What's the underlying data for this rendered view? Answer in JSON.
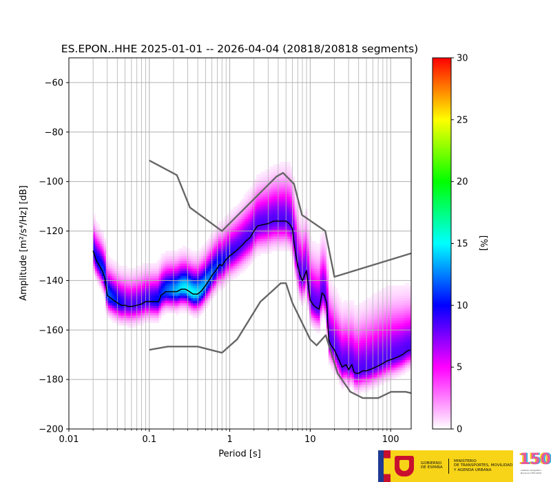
{
  "chart_data": {
    "type": "heatmap",
    "title": "ES.EPON..HHE   2025-01-01 -- 2026-04-04  (20818/20818 segments)",
    "xlabel": "Period [s]",
    "ylabel": "Amplitude [m²/s⁴/Hz] [dB]",
    "x_scale": "log",
    "xlim": [
      0.01,
      180
    ],
    "ylim": [
      -200,
      -50
    ],
    "x_ticks": [
      0.01,
      0.1,
      1,
      10,
      100
    ],
    "x_tick_labels": [
      "0.01",
      "0.1",
      "1",
      "10",
      "100"
    ],
    "y_ticks": [
      -200,
      -180,
      -160,
      -140,
      -120,
      -100,
      -80,
      -60
    ],
    "y_tick_labels": [
      "−200",
      "−180",
      "−160",
      "−140",
      "−120",
      "−100",
      "−80",
      "−60"
    ],
    "grid": true,
    "colorbar": {
      "label": "[%]",
      "range": [
        0,
        30
      ],
      "ticks": [
        0,
        5,
        10,
        15,
        20,
        25,
        30
      ],
      "tick_labels": [
        "0",
        "5",
        "10",
        "15",
        "20",
        "25",
        "30"
      ],
      "colormap": [
        "#ffffff",
        "#ff00ff",
        "#0000ff",
        "#00ffff",
        "#00ff00",
        "#ffff00",
        "#ff0000"
      ]
    },
    "series": [
      {
        "role": "mode",
        "color": "#000000",
        "x": [
          0.02,
          0.022,
          0.024,
          0.026,
          0.028,
          0.03,
          0.033,
          0.036,
          0.04,
          0.045,
          0.05,
          0.055,
          0.06,
          0.07,
          0.08,
          0.09,
          0.1,
          0.11,
          0.12,
          0.13,
          0.14,
          0.16,
          0.18,
          0.2,
          0.22,
          0.25,
          0.28,
          0.3,
          0.35,
          0.4,
          0.45,
          0.5,
          0.55,
          0.6,
          0.65,
          0.7,
          0.75,
          0.8,
          0.9,
          1.0,
          1.1,
          1.2,
          1.4,
          1.6,
          1.8,
          2.0,
          2.2,
          2.5,
          3.0,
          3.5,
          4.0,
          4.5,
          5.0,
          5.5,
          6.0,
          6.5,
          7.0,
          7.5,
          8.0,
          8.5,
          9.0,
          10.0,
          11.0,
          12.0,
          13.0,
          14.0,
          15.0,
          16.0,
          17.0,
          18.0,
          19.0,
          20.0,
          22.0,
          25.0,
          28.0,
          30.0,
          33.0,
          35.0,
          37.0,
          40.0,
          45.0,
          50.0,
          55.0,
          60.0,
          70.0,
          80.0,
          90.0,
          100.0,
          110.0,
          120.0,
          140.0,
          160.0,
          175.0
        ],
        "y": [
          -128,
          -132,
          -134,
          -136,
          -139,
          -146,
          -147,
          -148,
          -149,
          -150,
          -150,
          -150.5,
          -150.5,
          -150,
          -149.5,
          -148.5,
          -148.5,
          -148.5,
          -148.5,
          -148.5,
          -146,
          -144.5,
          -144.5,
          -144.5,
          -144.5,
          -143.5,
          -143.5,
          -144,
          -145.5,
          -145.5,
          -144,
          -142,
          -140,
          -138,
          -136.5,
          -135,
          -133.5,
          -134,
          -131.5,
          -130,
          -129,
          -128,
          -126,
          -124,
          -122.5,
          -120,
          -118,
          -117.5,
          -117,
          -116,
          -116,
          -116,
          -116,
          -117,
          -119,
          -128,
          -134,
          -138,
          -140,
          -138,
          -136,
          -148,
          -150,
          -151,
          -151.5,
          -145,
          -146,
          -149,
          -164,
          -166,
          -167,
          -168,
          -171,
          -175,
          -174,
          -176,
          -174,
          -177,
          -177.5,
          -177.5,
          -176.5,
          -176.5,
          -176,
          -175.5,
          -174.5,
          -173.5,
          -172.5,
          -172,
          -171.5,
          -171,
          -170,
          -168.5,
          -168
        ]
      },
      {
        "role": "high-noise-model",
        "color": "#666666",
        "x": [
          0.1,
          0.22,
          0.32,
          0.8,
          3.8,
          4.6,
          6.3,
          7.9,
          15.4,
          20.0,
          180.0
        ],
        "y": [
          -91.5,
          -97.4,
          -110.5,
          -120.0,
          -98.0,
          -96.5,
          -101.0,
          -113.5,
          -120.0,
          -138.5,
          -129.0
        ]
      },
      {
        "role": "low-noise-model",
        "color": "#666666",
        "x": [
          0.1,
          0.17,
          0.4,
          0.8,
          1.24,
          2.4,
          4.3,
          5.0,
          6.0,
          10.0,
          12.0,
          15.6,
          21.9,
          31.6,
          45.0,
          70.0,
          101.0,
          154.0,
          180.0
        ],
        "y": [
          -168.0,
          -166.7,
          -166.7,
          -169.2,
          -163.7,
          -148.6,
          -141.1,
          -141.1,
          -149.0,
          -163.8,
          -166.2,
          -162.1,
          -177.5,
          -185.0,
          -187.5,
          -187.5,
          -185.0,
          -185.0,
          -185.5
        ]
      }
    ]
  },
  "footer": {
    "gov_line1": "GOBIERNO",
    "gov_line2": "DE ESPAÑA",
    "ministry_line1": "MINISTERIO",
    "ministry_line2": "DE TRANSPORTES, MOVILIDAD",
    "ministry_line3": "Y AGENDA URBANA",
    "ign_number": "150",
    "ign_text_line1": "Instituto Geográfico",
    "ign_text_line2": "Nacional 1870-2020"
  }
}
